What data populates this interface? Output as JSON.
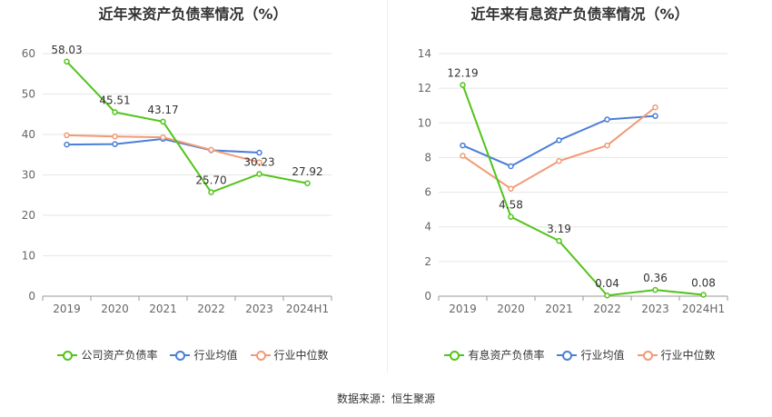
{
  "footer": {
    "source": "数据来源：恒生聚源"
  },
  "chart_data": [
    {
      "type": "line",
      "title": "近年来资产负债率情况（%）",
      "categories": [
        "2019",
        "2020",
        "2021",
        "2022",
        "2023",
        "2024H1"
      ],
      "ylim": [
        0,
        60
      ],
      "yticks": [
        0,
        10,
        20,
        30,
        40,
        50,
        60
      ],
      "grid": true,
      "legend_position": "bottom",
      "series": [
        {
          "name": "公司资产负债率",
          "color": "#52c41a",
          "values": [
            58.03,
            45.51,
            43.17,
            25.7,
            30.23,
            27.92
          ],
          "labels": true
        },
        {
          "name": "行业均值",
          "color": "#4a7fd6",
          "values": [
            37.5,
            37.6,
            38.9,
            36.1,
            35.5,
            null
          ],
          "labels": false
        },
        {
          "name": "行业中位数",
          "color": "#f29a76",
          "values": [
            39.8,
            39.5,
            39.3,
            36.2,
            33.1,
            null
          ],
          "labels": false
        }
      ]
    },
    {
      "type": "line",
      "title": "近年来有息资产负债率情况（%）",
      "categories": [
        "2019",
        "2020",
        "2021",
        "2022",
        "2023",
        "2024H1"
      ],
      "ylim": [
        0,
        14
      ],
      "yticks": [
        0,
        2,
        4,
        6,
        8,
        10,
        12,
        14
      ],
      "grid": true,
      "legend_position": "bottom",
      "series": [
        {
          "name": "有息资产负债率",
          "color": "#52c41a",
          "values": [
            12.19,
            4.58,
            3.19,
            0.04,
            0.36,
            0.08
          ],
          "labels": true
        },
        {
          "name": "行业均值",
          "color": "#4a7fd6",
          "values": [
            8.7,
            7.5,
            9.0,
            10.2,
            10.4,
            null
          ],
          "labels": false
        },
        {
          "name": "行业中位数",
          "color": "#f29a76",
          "values": [
            8.1,
            6.2,
            7.8,
            8.7,
            10.9,
            null
          ],
          "labels": false
        }
      ]
    }
  ]
}
